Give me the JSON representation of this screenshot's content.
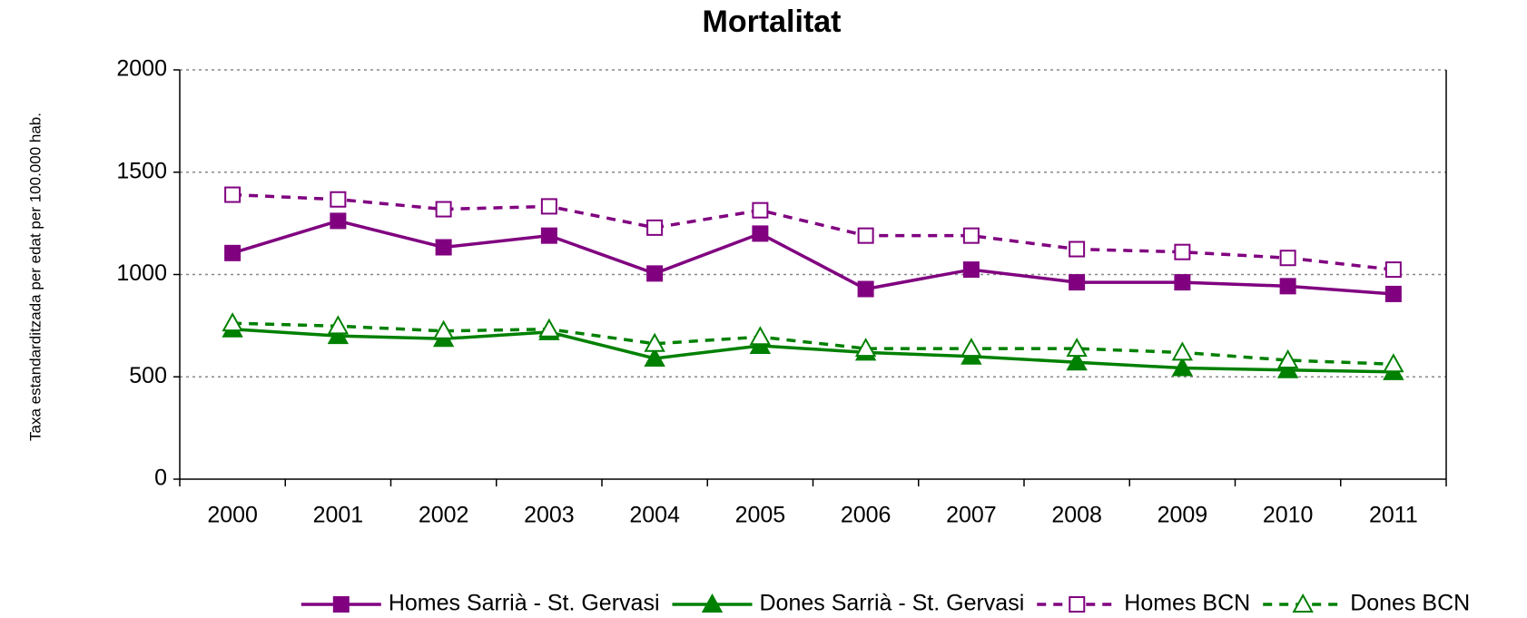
{
  "chart_data": {
    "type": "line",
    "title": "Mortalitat",
    "y_label": "Taxa estandarditzada per edat per 100.000 hab.",
    "categories": [
      "2000",
      "2001",
      "2002",
      "2003",
      "2004",
      "2005",
      "2006",
      "2007",
      "2008",
      "2009",
      "2010",
      "2011"
    ],
    "ylim": [
      0,
      2000
    ],
    "yticks": [
      0,
      500,
      1000,
      1500,
      2000
    ],
    "grid": true,
    "legend": "bottom",
    "series": [
      {
        "name": "Homes Sarrià - St. Gervasi",
        "color": "#800080",
        "marker": "square",
        "filled": true,
        "dashed": false,
        "values": [
          1105,
          1262,
          1133,
          1190,
          1005,
          1200,
          929,
          1024,
          962,
          962,
          943,
          905
        ]
      },
      {
        "name": "Dones Sarrià - St. Gervasi",
        "color": "#008000",
        "marker": "triangle",
        "filled": true,
        "dashed": false,
        "values": [
          733,
          700,
          686,
          719,
          590,
          652,
          619,
          600,
          571,
          543,
          533,
          524
        ]
      },
      {
        "name": "Homes BCN",
        "color": "#800080",
        "marker": "square",
        "filled": false,
        "dashed": true,
        "values": [
          1390,
          1367,
          1319,
          1333,
          1229,
          1314,
          1190,
          1190,
          1124,
          1110,
          1081,
          1024
        ]
      },
      {
        "name": "Dones BCN",
        "color": "#008000",
        "marker": "triangle",
        "filled": false,
        "dashed": true,
        "values": [
          762,
          748,
          724,
          733,
          662,
          695,
          638,
          638,
          638,
          619,
          581,
          562
        ]
      }
    ]
  }
}
